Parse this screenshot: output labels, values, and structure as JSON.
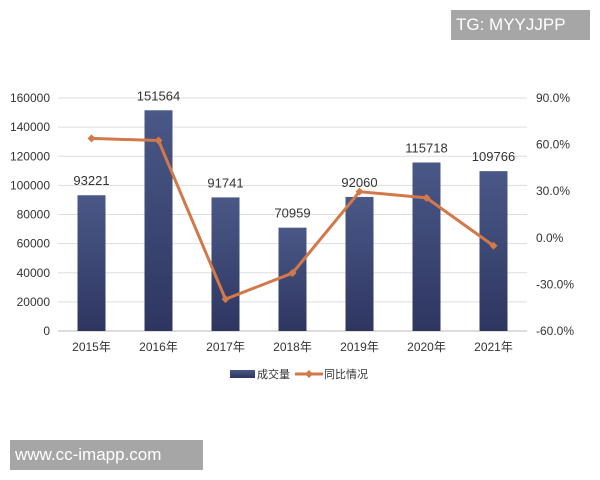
{
  "watermarks": {
    "top": "TG: MYYJJPP",
    "bottom": "www.cc-imapp.com"
  },
  "chart_data": {
    "type": "bar+line",
    "categories": [
      "2015年",
      "2016年",
      "2017年",
      "2018年",
      "2019年",
      "2020年",
      "2021年"
    ],
    "series": [
      {
        "name": "成交量",
        "type": "bar",
        "axis": "left",
        "values": [
          93221,
          151564,
          91741,
          70959,
          92060,
          115718,
          109766
        ],
        "labels": [
          "93221",
          "151564",
          "91741",
          "70959",
          "92060",
          "115718",
          "109766"
        ],
        "color": "#3f4a78"
      },
      {
        "name": "同比情况",
        "type": "line",
        "axis": "right",
        "values": [
          64.0,
          62.6,
          -39.5,
          -22.7,
          29.7,
          25.7,
          -5.1
        ],
        "color": "#d2784a"
      }
    ],
    "left_axis": {
      "ylim": [
        0,
        160000
      ],
      "ticks": [
        "0",
        "20000",
        "40000",
        "60000",
        "80000",
        "100000",
        "120000",
        "140000",
        "160000"
      ]
    },
    "right_axis": {
      "ylim": [
        -60,
        90
      ],
      "ticks": [
        "-60.0%",
        "-30.0%",
        "0.0%",
        "30.0%",
        "60.0%",
        "90.0%"
      ]
    },
    "legend_position": "bottom",
    "grid": true
  }
}
